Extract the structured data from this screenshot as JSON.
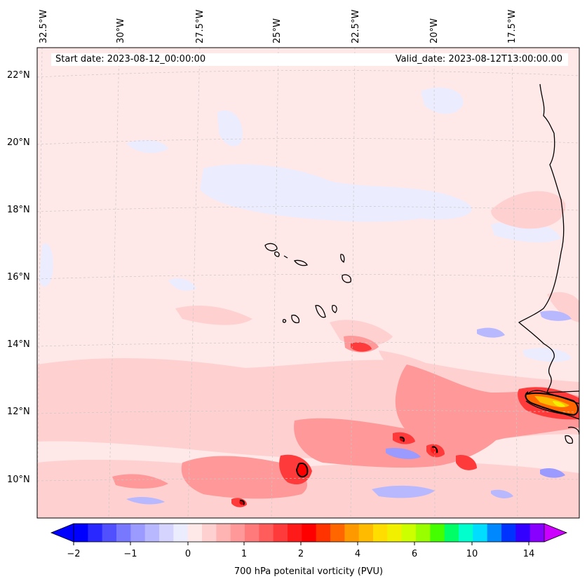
{
  "map": {
    "start_date": "Start date: 2023-08-12_00:00:00",
    "valid_date": "Valid_date: 2023-08-12T13:00:00.00",
    "lon_labels": [
      "32.5°W",
      "30°W",
      "27.5°W",
      "25°W",
      "22.5°W",
      "20°W",
      "17.5°W"
    ],
    "lat_labels": [
      "22°N",
      "20°N",
      "18°N",
      "16°N",
      "14°N",
      "12°N",
      "10°N"
    ],
    "background_color": "#ffe8e8",
    "land_outline_color": "#000000"
  },
  "colorbar": {
    "label": "700 hPa potenital vorticity (PVU)",
    "tick_labels": [
      "−2",
      "−1",
      "0",
      "1",
      "2",
      "4",
      "6",
      "10",
      "14"
    ],
    "colors": [
      "#0000ff",
      "#2828ff",
      "#5050ff",
      "#7878ff",
      "#9a9aff",
      "#b8b8ff",
      "#d4d4ff",
      "#ececff",
      "#ffe8e8",
      "#ffd0d0",
      "#ffb4b4",
      "#ff9898",
      "#ff7a7a",
      "#ff5c5c",
      "#ff3a3a",
      "#ff1a1a",
      "#ff0000",
      "#ff3300",
      "#ff6600",
      "#ff9900",
      "#ffbb00",
      "#ffdd00",
      "#f0f000",
      "#ccff00",
      "#99ff00",
      "#44ff00",
      "#00ff66",
      "#00ffcc",
      "#00ddff",
      "#0088ff",
      "#0033ff",
      "#3300ff",
      "#8800ff"
    ],
    "extend_low_color": "#0000ff",
    "extend_high_color": "#cc00ff"
  }
}
